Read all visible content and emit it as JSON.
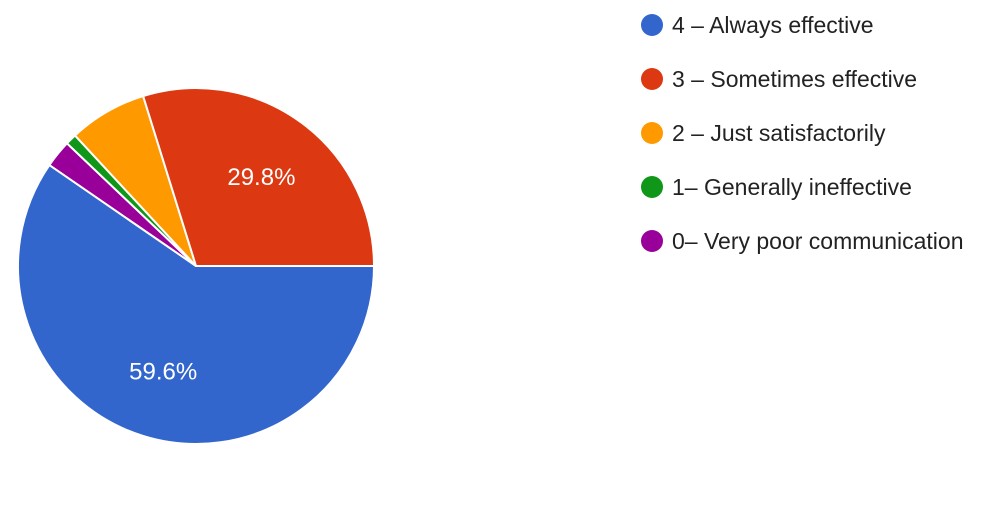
{
  "chart_data": {
    "type": "pie",
    "title": "",
    "slices": [
      {
        "label": "4 – Always effective",
        "value": 59.6,
        "color": "#3366cc",
        "display_label": "59.6%"
      },
      {
        "label": "0– Very poor communication",
        "value": 2.5,
        "color": "#990099",
        "display_label": ""
      },
      {
        "label": "1– Generally ineffective",
        "value": 1.0,
        "color": "#109618",
        "display_label": ""
      },
      {
        "label": "2 – Just satisfactorily",
        "value": 7.1,
        "color": "#ff9900",
        "display_label": ""
      },
      {
        "label": "3 – Sometimes effective",
        "value": 29.8,
        "color": "#dc3912",
        "display_label": "29.8%"
      }
    ],
    "legend": {
      "position": "right",
      "items": [
        {
          "label": "4 – Always effective",
          "color": "#3366cc"
        },
        {
          "label": "3 – Sometimes effective",
          "color": "#dc3912"
        },
        {
          "label": "2 – Just satisfactorily",
          "color": "#ff9900"
        },
        {
          "label": "1– Generally ineffective",
          "color": "#109618"
        },
        {
          "label": "0– Very poor communication",
          "color": "#990099"
        }
      ]
    }
  }
}
